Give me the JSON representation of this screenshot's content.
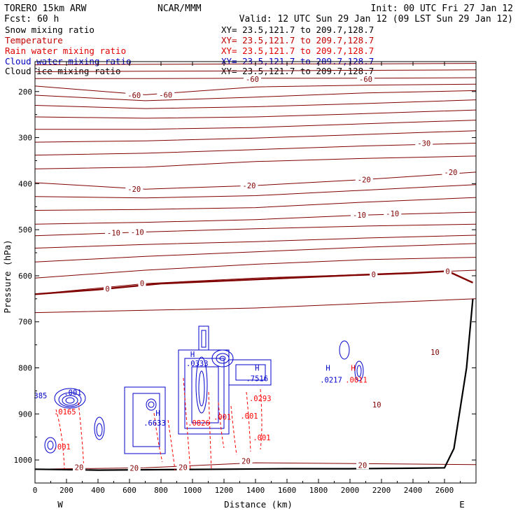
{
  "header": {
    "model": "TORERO  15km ARW",
    "center": "NCAR/MMM",
    "init": "Init: 00 UTC Fri 27 Jan 12",
    "fcst": "Fcst:   60 h",
    "valid": "Valid: 12 UTC Sun 29 Jan 12 (09 LST Sun 29 Jan 12)"
  },
  "legend": {
    "items": [
      {
        "name": "Snow mixing ratio",
        "xy": "XY=  23.5,121.7 to 209.7,128.7",
        "color": "#000000"
      },
      {
        "name": "Temperature",
        "xy": "XY=  23.5,121.7 to 209.7,128.7",
        "color": "#c00000"
      },
      {
        "name": "Rain water mixing ratio",
        "xy": "XY=  23.5,121.7 to 209.7,128.7",
        "color": "#e00000"
      },
      {
        "name": "Cloud water mixing ratio",
        "xy": "XY=  23.5,121.7 to 209.7,128.7",
        "color": "#0000c0"
      },
      {
        "name": "Cloud ice mixing ratio",
        "xy": "XY=  23.5,121.7 to 209.7,128.7",
        "color": "#000000"
      }
    ]
  },
  "colors": {
    "temperature": "#800000",
    "cloud_water": "#0000cc",
    "rain_water": "#ff0000",
    "terrain": "#000000"
  },
  "chart_data": {
    "type": "line",
    "xlabel": "Distance (km)",
    "ylabel": "Pressure (hPa)",
    "xlim": [
      0,
      2800
    ],
    "ylim": [
      1050,
      135
    ],
    "x_ticks": [
      0,
      200,
      400,
      600,
      800,
      1000,
      1200,
      1400,
      1600,
      1800,
      2000,
      2200,
      2400,
      2600
    ],
    "y_ticks": [
      200,
      300,
      400,
      500,
      600,
      700,
      800,
      900,
      1000
    ],
    "x_end_labels": {
      "left": "W",
      "right": "E"
    },
    "isotherm_labels": [
      {
        "text": "-60",
        "x": 630,
        "p": 208
      },
      {
        "text": "-60",
        "x": 830,
        "p": 207
      },
      {
        "text": "-60",
        "x": 1380,
        "p": 173
      },
      {
        "text": "-60",
        "x": 2100,
        "p": 173
      },
      {
        "text": "-30",
        "x": 2470,
        "p": 312
      },
      {
        "text": "-20",
        "x": 630,
        "p": 412
      },
      {
        "text": "-20",
        "x": 1360,
        "p": 404
      },
      {
        "text": "-20",
        "x": 2090,
        "p": 391
      },
      {
        "text": "-20",
        "x": 2640,
        "p": 375
      },
      {
        "text": "-10",
        "x": 500,
        "p": 507
      },
      {
        "text": "-10",
        "x": 650,
        "p": 505
      },
      {
        "text": "-10",
        "x": 2060,
        "p": 468
      },
      {
        "text": "-10",
        "x": 2270,
        "p": 465
      },
      {
        "text": "0",
        "x": 460,
        "p": 628
      },
      {
        "text": "0",
        "x": 680,
        "p": 616
      },
      {
        "text": "0",
        "x": 2150,
        "p": 597
      },
      {
        "text": "0",
        "x": 2620,
        "p": 590
      },
      {
        "text": "10",
        "x": 2540,
        "p": 766
      },
      {
        "text": "10",
        "x": 2170,
        "p": 880
      },
      {
        "text": "20",
        "x": 280,
        "p": 1016
      },
      {
        "text": "20",
        "x": 630,
        "p": 1017
      },
      {
        "text": "20",
        "x": 940,
        "p": 1016
      },
      {
        "text": "20",
        "x": 1340,
        "p": 1002
      },
      {
        "text": "20",
        "x": 2080,
        "p": 1011
      }
    ],
    "isotherms": [
      {
        "x": [
          0,
          700,
          1400,
          2100,
          2800
        ],
        "p": [
          142,
          141,
          140,
          140,
          139
        ]
      },
      {
        "x": [
          0,
          700,
          1400,
          2100,
          2800
        ],
        "p": [
          157,
          156,
          155,
          154,
          153
        ]
      },
      {
        "x": [
          0,
          700,
          1400,
          2100,
          2800
        ],
        "p": [
          172,
          172,
          171,
          171,
          170
        ]
      },
      {
        "x": [
          0,
          700,
          1400,
          2100,
          2800
        ],
        "p": [
          188,
          207,
          190,
          186,
          184
        ]
      },
      {
        "x": [
          0,
          700,
          1400,
          2100,
          2800
        ],
        "p": [
          208,
          220,
          212,
          203,
          198
        ]
      },
      {
        "x": [
          0,
          700,
          1400,
          2100,
          2800
        ],
        "p": [
          230,
          237,
          233,
          226,
          218
        ]
      },
      {
        "x": [
          0,
          700,
          1400,
          2100,
          2800
        ],
        "p": [
          255,
          258,
          255,
          248,
          240
        ]
      },
      {
        "x": [
          0,
          700,
          1400,
          2100,
          2800
        ],
        "p": [
          282,
          282,
          278,
          270,
          262
        ]
      },
      {
        "x": [
          0,
          700,
          1400,
          2100,
          2800
        ],
        "p": [
          310,
          307,
          301,
          293,
          285
        ]
      },
      {
        "x": [
          0,
          700,
          1400,
          2100,
          2800
        ],
        "p": [
          338,
          334,
          326,
          318,
          312
        ]
      },
      {
        "x": [
          0,
          700,
          1400,
          2100,
          2800
        ],
        "p": [
          368,
          364,
          352,
          345,
          340
        ]
      },
      {
        "x": [
          0,
          700,
          1400,
          2100,
          2800
        ],
        "p": [
          398,
          412,
          404,
          391,
          375
        ]
      },
      {
        "x": [
          0,
          700,
          1400,
          2100,
          2800
        ],
        "p": [
          428,
          431,
          426,
          414,
          402
        ]
      },
      {
        "x": [
          0,
          700,
          1400,
          2100,
          2800
        ],
        "p": [
          458,
          456,
          452,
          440,
          430
        ]
      },
      {
        "x": [
          0,
          700,
          1400,
          2100,
          2800
        ],
        "p": [
          488,
          484,
          478,
          468,
          462
        ]
      },
      {
        "x": [
          0,
          700,
          1400,
          2100,
          2800
        ],
        "p": [
          513,
          505,
          498,
          492,
          488
        ]
      },
      {
        "x": [
          0,
          700,
          1400,
          2100,
          2800
        ],
        "p": [
          540,
          532,
          526,
          518,
          512
        ]
      },
      {
        "x": [
          0,
          700,
          1400,
          2100,
          2800
        ],
        "p": [
          570,
          558,
          548,
          538,
          530
        ]
      },
      {
        "x": [
          0,
          700,
          1400,
          2100,
          2800
        ],
        "p": [
          605,
          588,
          575,
          565,
          560
        ]
      },
      {
        "x": [
          0,
          700,
          1400,
          2100,
          2800
        ],
        "p": [
          640,
          617,
          605,
          597,
          588
        ]
      },
      {
        "x": [
          0,
          700,
          1400,
          2100,
          2800
        ],
        "p": [
          680,
          675,
          670,
          660,
          650
        ]
      },
      {
        "x": [
          0,
          700,
          1400,
          2100,
          2800
        ],
        "p": [
          1020,
          1017,
          1006,
          1008,
          1010
        ]
      }
    ],
    "zero_isotherm": {
      "x": [
        0,
        400,
        800,
        1200,
        1600,
        2000,
        2400,
        2620,
        2780
      ],
      "p": [
        640,
        630,
        617,
        611,
        605,
        599,
        594,
        590,
        615
      ]
    },
    "terrain": {
      "x": [
        0,
        400,
        800,
        1200,
        1600,
        2000,
        2400,
        2600,
        2660,
        2740,
        2780
      ],
      "p": [
        1020,
        1022,
        1021,
        1020,
        1019,
        1019,
        1018,
        1017,
        975,
        800,
        650
      ]
    },
    "cloud_water_labels": [
      {
        "text": "H",
        "x": 1000,
        "p": 770
      },
      {
        "text": ".0333",
        "x": 1030,
        "p": 790
      },
      {
        "text": "H",
        "x": 1410,
        "p": 800
      },
      {
        "text": ".7516",
        "x": 1410,
        "p": 823
      },
      {
        "text": "H",
        "x": 1860,
        "p": 800
      },
      {
        "text": ".0217",
        "x": 1880,
        "p": 826
      },
      {
        "text": "H",
        "x": 780,
        "p": 898
      },
      {
        "text": ".6633",
        "x": 760,
        "p": 919
      },
      {
        "text": ".001",
        "x": 240,
        "p": 853
      },
      {
        "text": "385",
        "x": 35,
        "p": 860
      }
    ],
    "rain_water_labels": [
      {
        "text": "H",
        "x": 2020,
        "p": 800
      },
      {
        "text": ".0011",
        "x": 2040,
        "p": 826
      },
      {
        "text": ".0293",
        "x": 1430,
        "p": 866
      },
      {
        "text": ".001",
        "x": 1190,
        "p": 906
      },
      {
        "text": ".001",
        "x": 1360,
        "p": 904
      },
      {
        "text": ".0826",
        "x": 1040,
        "p": 919
      },
      {
        "text": ".0165",
        "x": 190,
        "p": 895
      },
      {
        "text": ".001",
        "x": 170,
        "p": 971
      },
      {
        "text": ".001",
        "x": 1440,
        "p": 951
      }
    ]
  }
}
